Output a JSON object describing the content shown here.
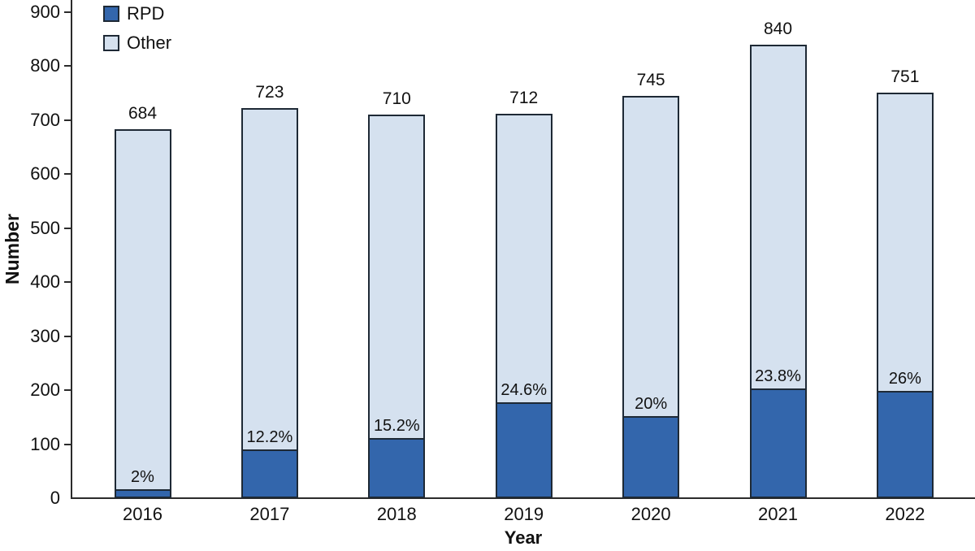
{
  "chart_data": {
    "type": "bar",
    "stacked": true,
    "title": "",
    "xlabel": "Year",
    "ylabel": "Number",
    "categories": [
      "2016",
      "2017",
      "2018",
      "2019",
      "2020",
      "2021",
      "2022"
    ],
    "series": [
      {
        "name": "RPD",
        "color": "#3366ac",
        "values": [
          14,
          88,
          108,
          175,
          149,
          200,
          195
        ]
      },
      {
        "name": "Other",
        "color": "#d5e1ef",
        "values": [
          670,
          635,
          602,
          537,
          596,
          640,
          556
        ]
      }
    ],
    "totals": [
      684,
      723,
      710,
      712,
      745,
      840,
      751
    ],
    "total_labels": [
      "684",
      "723",
      "710",
      "712",
      "745",
      "840",
      "751"
    ],
    "rpd_percent_labels": [
      "2%",
      "12.2%",
      "15.2%",
      "24.6%",
      "20%",
      "23.8%",
      "26%"
    ],
    "ylim": [
      0,
      900
    ],
    "yticks": [
      0,
      100,
      200,
      300,
      400,
      500,
      600,
      700,
      800,
      900
    ],
    "grid": false,
    "legend_position": "top-left",
    "colors": {
      "rpd": "#3366ac",
      "other": "#d5e1ef",
      "bar_border": "#1e2935",
      "axis": "#2b2b2b",
      "text": "#111111",
      "background": "#ffffff"
    }
  }
}
